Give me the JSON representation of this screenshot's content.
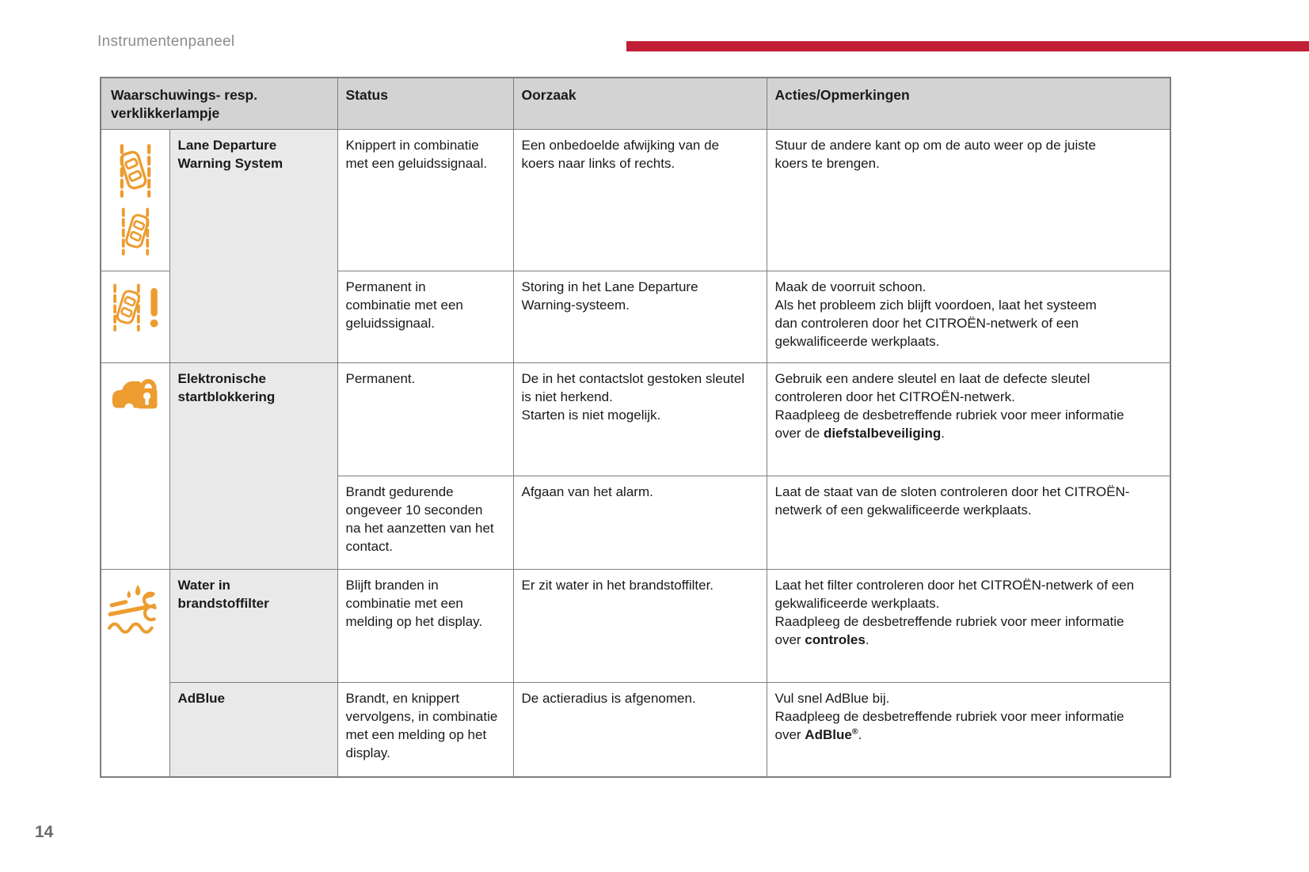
{
  "page": {
    "title": "Instrumentenpaneel",
    "page_number": "14"
  },
  "colors": {
    "accent_red": "#c11f35",
    "icon_orange": "#ed9c30",
    "header_gray": "#d3d3d3",
    "label_gray": "#e9e9e9"
  },
  "table": {
    "header": {
      "lamp": [
        "Waarschuwings- resp.",
        "verklikkerlampje"
      ],
      "status": "Status",
      "cause": "Oorzaak",
      "actions": "Acties/Opmerkingen"
    },
    "labels": {
      "lane": [
        "Lane Departure",
        "Warning System"
      ],
      "immobilizer": [
        "Elektronische",
        "startblokkering"
      ],
      "water": [
        "Water in",
        "brandstoffilter"
      ],
      "adblue": [
        "AdBlue"
      ]
    },
    "icons": {
      "lane_left": "lane-departure-left",
      "lane_right": "lane-departure-right",
      "lane_fault": "lane-departure-fault",
      "immobilizer": "immobilizer-car-lock",
      "water": "water-in-fuel-filter"
    },
    "rows": {
      "r1": {
        "status": [
          "Knippert in combinatie",
          "met een geluidssignaal."
        ],
        "cause": [
          "Een onbedoelde afwijking van de",
          "koers naar links of rechts."
        ],
        "actions": [
          "Stuur de andere kant op om de auto weer op de juiste",
          "koers te brengen."
        ]
      },
      "r2": {
        "status": [
          "Permanent in",
          "combinatie met een",
          "geluidssignaal."
        ],
        "cause": [
          "Storing in het Lane Departure",
          "Warning-systeem."
        ],
        "actions": [
          "Maak de voorruit schoon.",
          "Als het probleem zich blijft voordoen, laat het systeem",
          "dan controleren door het CITROËN-netwerk of een",
          "gekwalificeerde werkplaats."
        ]
      },
      "r3": {
        "status": [
          "Permanent."
        ],
        "cause": [
          "De in het contactslot gestoken sleutel",
          "is niet herkend.",
          "Starten is niet mogelijk."
        ],
        "actions": [
          "Gebruik een andere sleutel en laat de defecte sleutel",
          "controleren door het CITROËN-netwerk.",
          "Raadpleeg de desbetreffende rubriek voor meer informatie",
          [
            {
              "t": "over de "
            },
            {
              "t": "diefstalbeveiliging",
              "b": true
            },
            {
              "t": "."
            }
          ]
        ]
      },
      "r4": {
        "status": [
          "Brandt gedurende",
          "ongeveer 10 seconden",
          "na het aanzetten van het",
          "contact."
        ],
        "cause": [
          "Afgaan van het alarm."
        ],
        "actions": [
          "Laat de staat van de sloten controleren door het CITROËN-",
          "netwerk of een gekwalificeerde werkplaats."
        ]
      },
      "r5": {
        "status": [
          "Blijft branden in",
          "combinatie met een",
          "melding op het display."
        ],
        "cause": [
          "Er zit water in het brandstoffilter."
        ],
        "actions": [
          "Laat het filter controleren door het CITROËN-netwerk of een",
          "gekwalificeerde werkplaats.",
          "Raadpleeg de desbetreffende rubriek voor meer informatie",
          [
            {
              "t": "over "
            },
            {
              "t": "controles",
              "b": true
            },
            {
              "t": "."
            }
          ]
        ]
      },
      "r6": {
        "status": [
          "Brandt, en knippert",
          "vervolgens, in combinatie",
          "met een melding op het",
          "display."
        ],
        "cause": [
          "De actieradius is afgenomen."
        ],
        "actions": [
          "Vul snel AdBlue bij.",
          "Raadpleeg de desbetreffende rubriek voor meer informatie",
          [
            {
              "t": "over "
            },
            {
              "t": "AdBlue",
              "b": true
            },
            {
              "t": "®",
              "b": true,
              "sup": true
            },
            {
              "t": "."
            }
          ]
        ]
      }
    }
  }
}
